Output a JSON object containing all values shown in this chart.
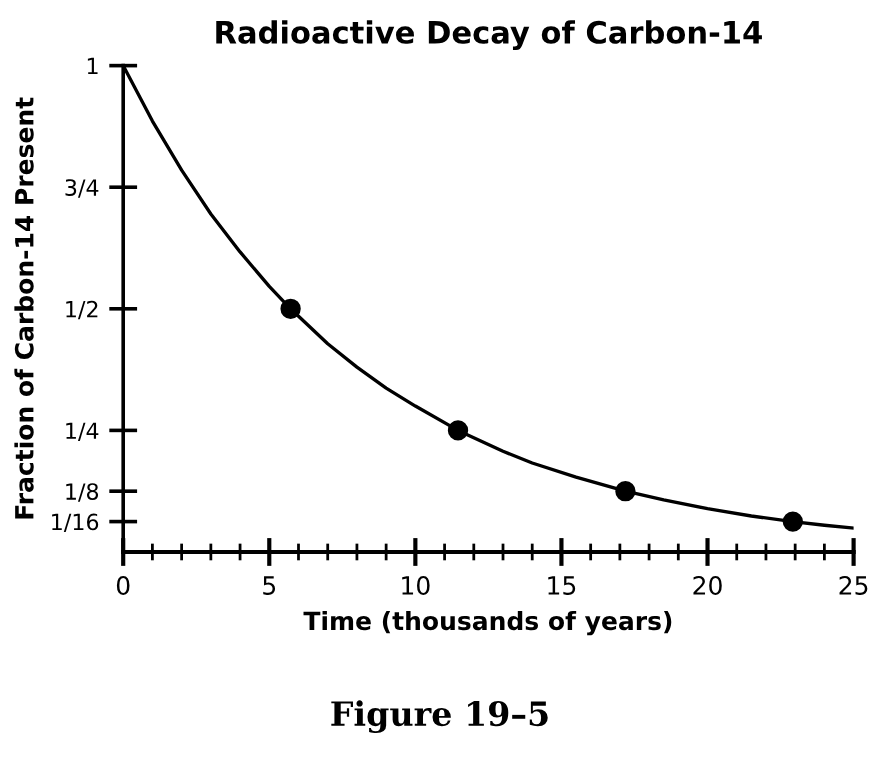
{
  "chart_data": {
    "type": "line",
    "title": "Radioactive Decay of Carbon-14",
    "xlabel": "Time (thousands of years)",
    "ylabel": "Fraction of Carbon-14 Present",
    "annotations": [
      "Figure 19–5"
    ],
    "series": [
      {
        "color": "#000000",
        "marker": "none",
        "x": [
          0,
          1,
          2,
          3,
          4,
          5,
          5.73,
          7,
          8,
          9,
          10,
          11.46,
          13,
          14,
          15.5,
          17.19,
          18.5,
          20,
          21.5,
          22.92,
          24,
          25
        ],
        "values": [
          1,
          0.886,
          0.785,
          0.695,
          0.617,
          0.546,
          0.5,
          0.428,
          0.38,
          0.337,
          0.3,
          0.25,
          0.207,
          0.183,
          0.154,
          0.125,
          0.107,
          0.089,
          0.074,
          0.0625,
          0.055,
          0.049
        ]
      },
      {
        "type": "scatter",
        "color": "#000000",
        "marker": "circle",
        "x": [
          5.73,
          11.46,
          17.19,
          22.92
        ],
        "values": [
          0.5,
          0.25,
          0.125,
          0.0625
        ]
      }
    ],
    "xlim": [
      0,
      25
    ],
    "xticks": [
      0,
      5,
      10,
      15,
      20,
      25
    ],
    "ylim": [
      0,
      1
    ],
    "yticks": [
      1,
      {
        "value": 0.75,
        "label": "3/4"
      },
      {
        "value": 0.5,
        "label": "1/2"
      },
      {
        "value": 0.25,
        "label": "1/4"
      },
      {
        "value": 0.125,
        "label": "1/8"
      },
      {
        "value": 0.0625,
        "label": "1/16"
      }
    ],
    "grid": false,
    "legend": false
  }
}
